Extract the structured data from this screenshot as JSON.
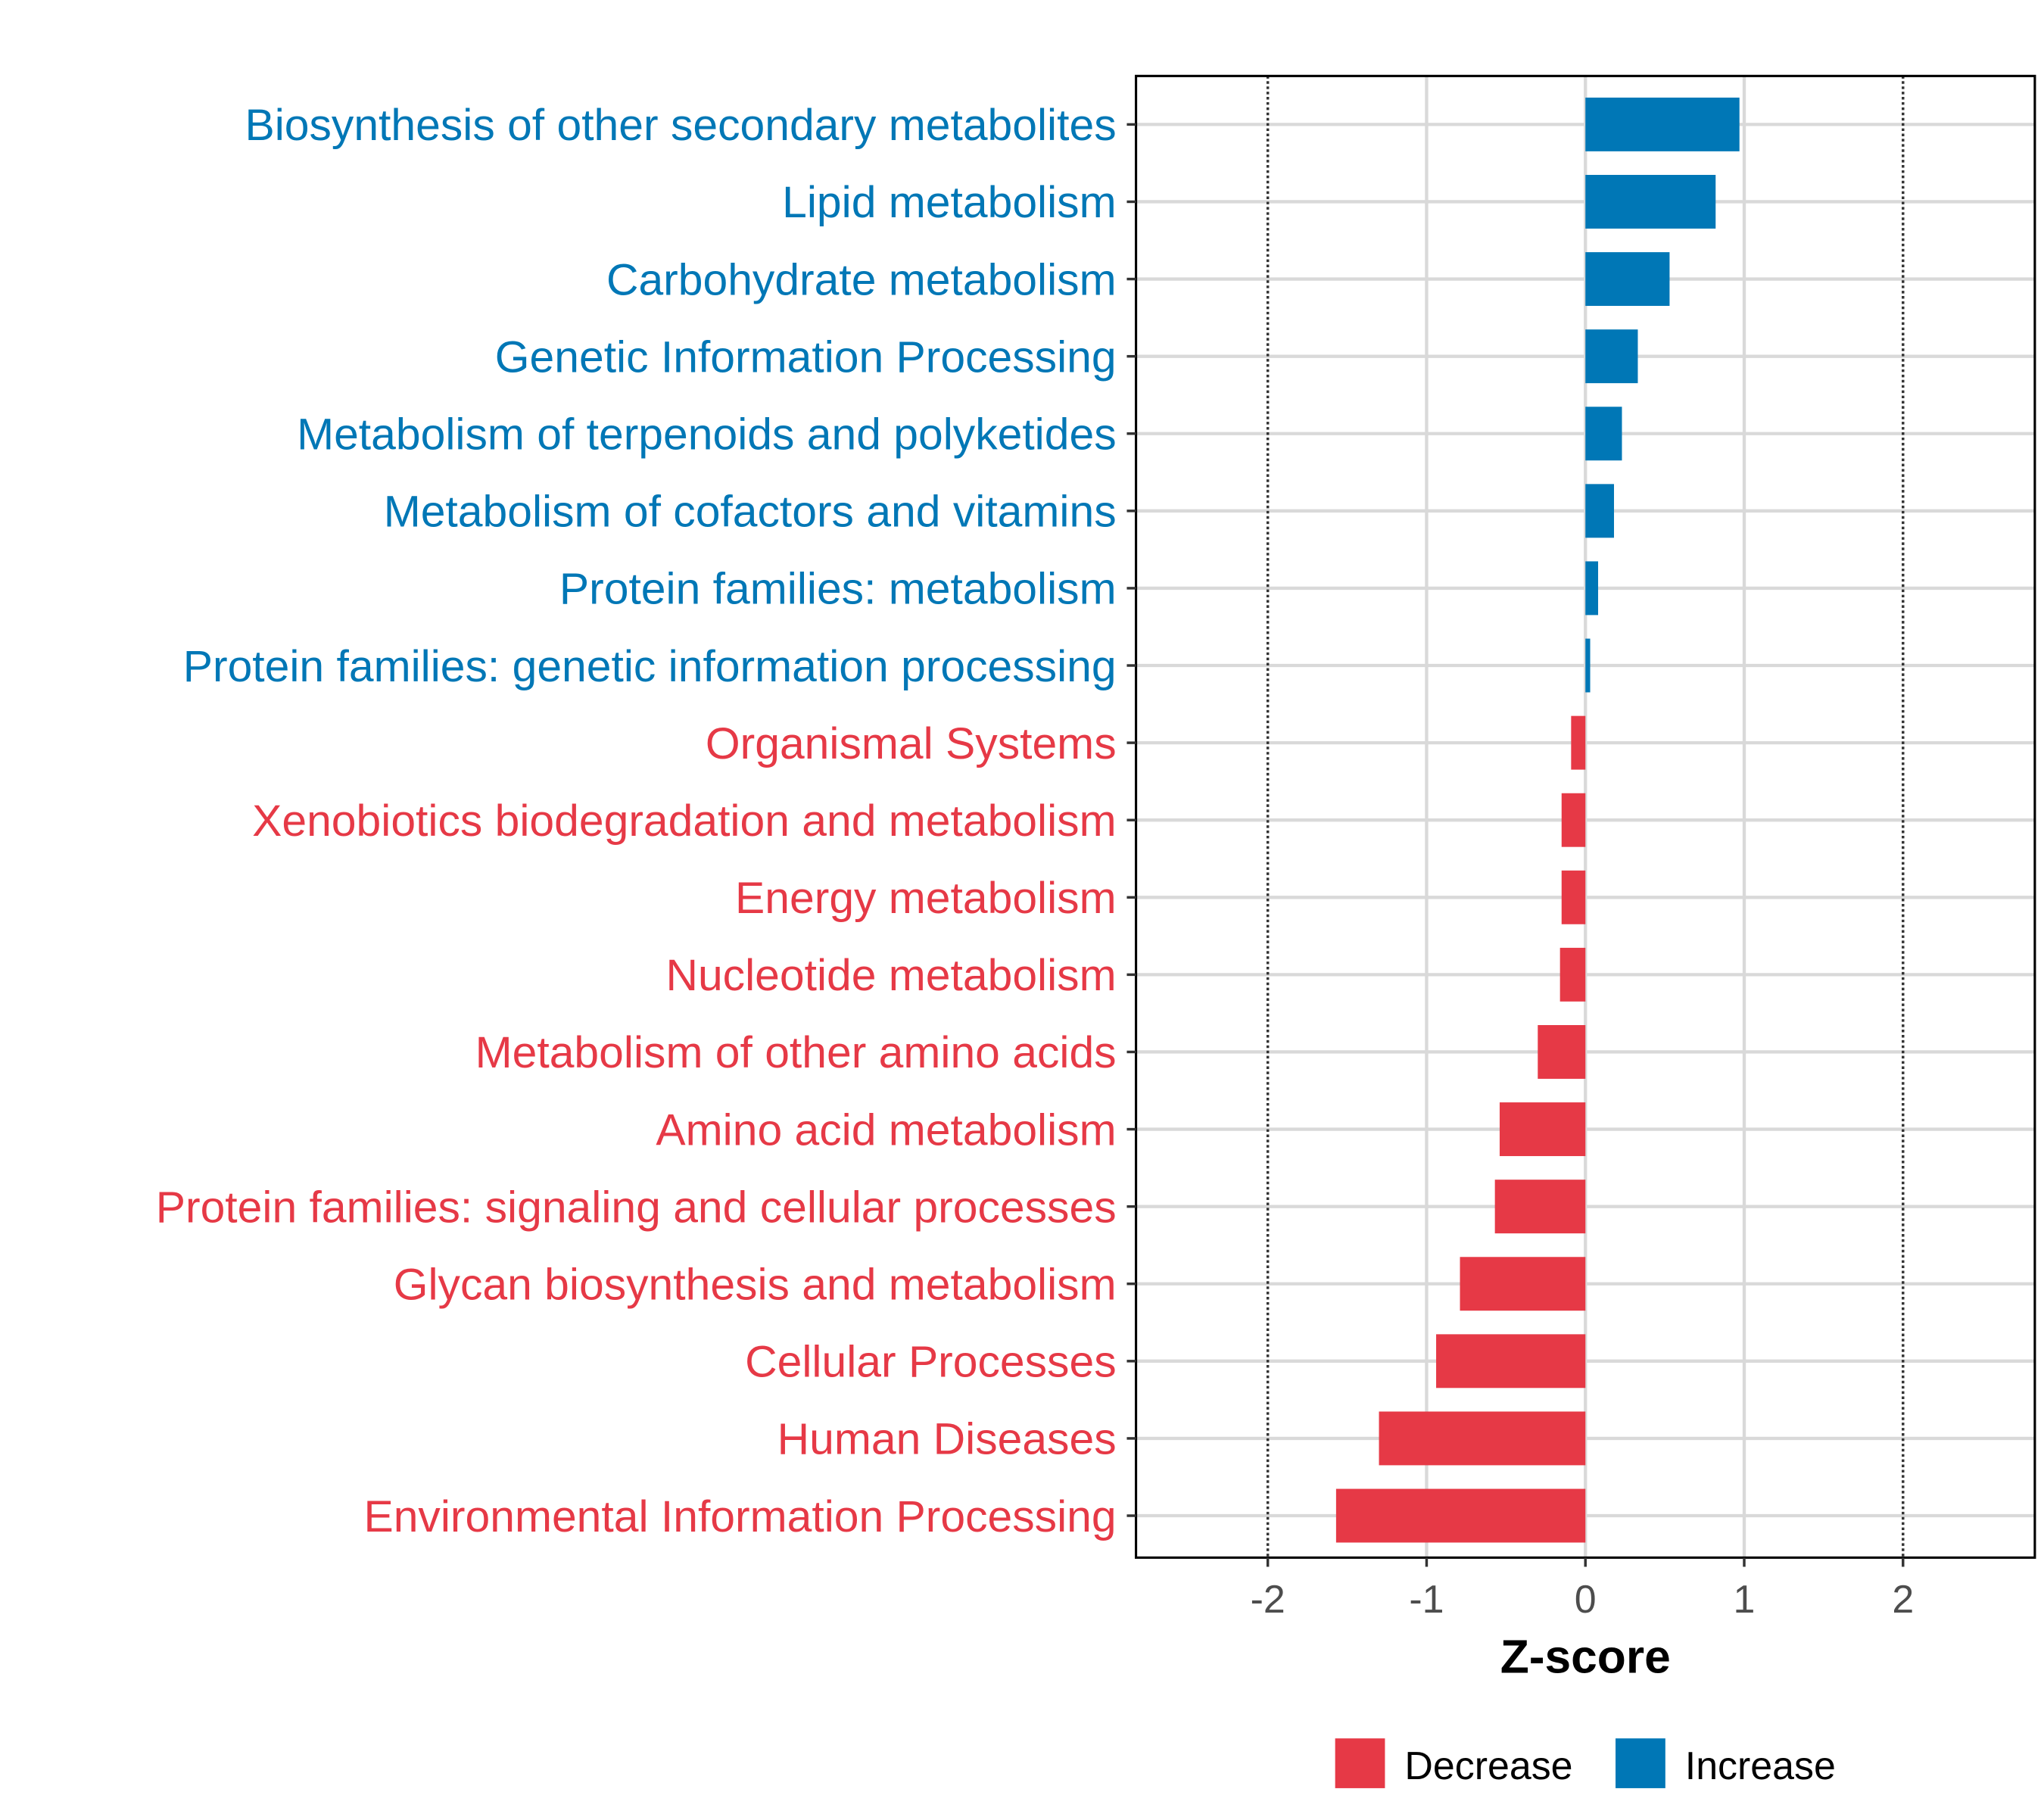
{
  "chart_data": {
    "type": "bar",
    "orientation": "horizontal",
    "title": "",
    "xlabel": "Z-score",
    "ylabel": "",
    "xlim": [
      -2.83,
      2.83
    ],
    "xticks": [
      -2,
      -1,
      0,
      1,
      2
    ],
    "xtick_labels": [
      "-2",
      "-1",
      "0",
      "1",
      "2"
    ],
    "reference_lines": [
      -2,
      2
    ],
    "grid": true,
    "categories": [
      "Biosynthesis of other secondary metabolites",
      "Lipid metabolism",
      "Carbohydrate metabolism",
      "Genetic Information Processing",
      "Metabolism of terpenoids and polyketides",
      "Metabolism of cofactors and vitamins",
      "Protein families: metabolism",
      "Protein families: genetic information processing",
      "Organismal Systems",
      "Xenobiotics biodegradation and metabolism",
      "Energy metabolism",
      "Nucleotide metabolism",
      "Metabolism of other amino acids",
      "Amino acid metabolism",
      "Protein families: signaling and cellular processes",
      "Glycan biosynthesis and metabolism",
      "Cellular Processes",
      "Human Diseases",
      "Environmental Information Processing"
    ],
    "values": [
      0.97,
      0.82,
      0.53,
      0.33,
      0.23,
      0.18,
      0.08,
      0.03,
      -0.09,
      -0.15,
      -0.15,
      -0.16,
      -0.3,
      -0.54,
      -0.57,
      -0.79,
      -0.94,
      -1.3,
      -1.57
    ],
    "groups": [
      "Increase",
      "Increase",
      "Increase",
      "Increase",
      "Increase",
      "Increase",
      "Increase",
      "Increase",
      "Decrease",
      "Decrease",
      "Decrease",
      "Decrease",
      "Decrease",
      "Decrease",
      "Decrease",
      "Decrease",
      "Decrease",
      "Decrease",
      "Decrease"
    ],
    "legend": {
      "position": "bottom",
      "entries": [
        {
          "label": "Decrease",
          "color": "#E63946"
        },
        {
          "label": "Increase",
          "color": "#0077B6"
        }
      ]
    },
    "colors": {
      "Decrease": "#E63946",
      "Increase": "#0077B6"
    }
  }
}
